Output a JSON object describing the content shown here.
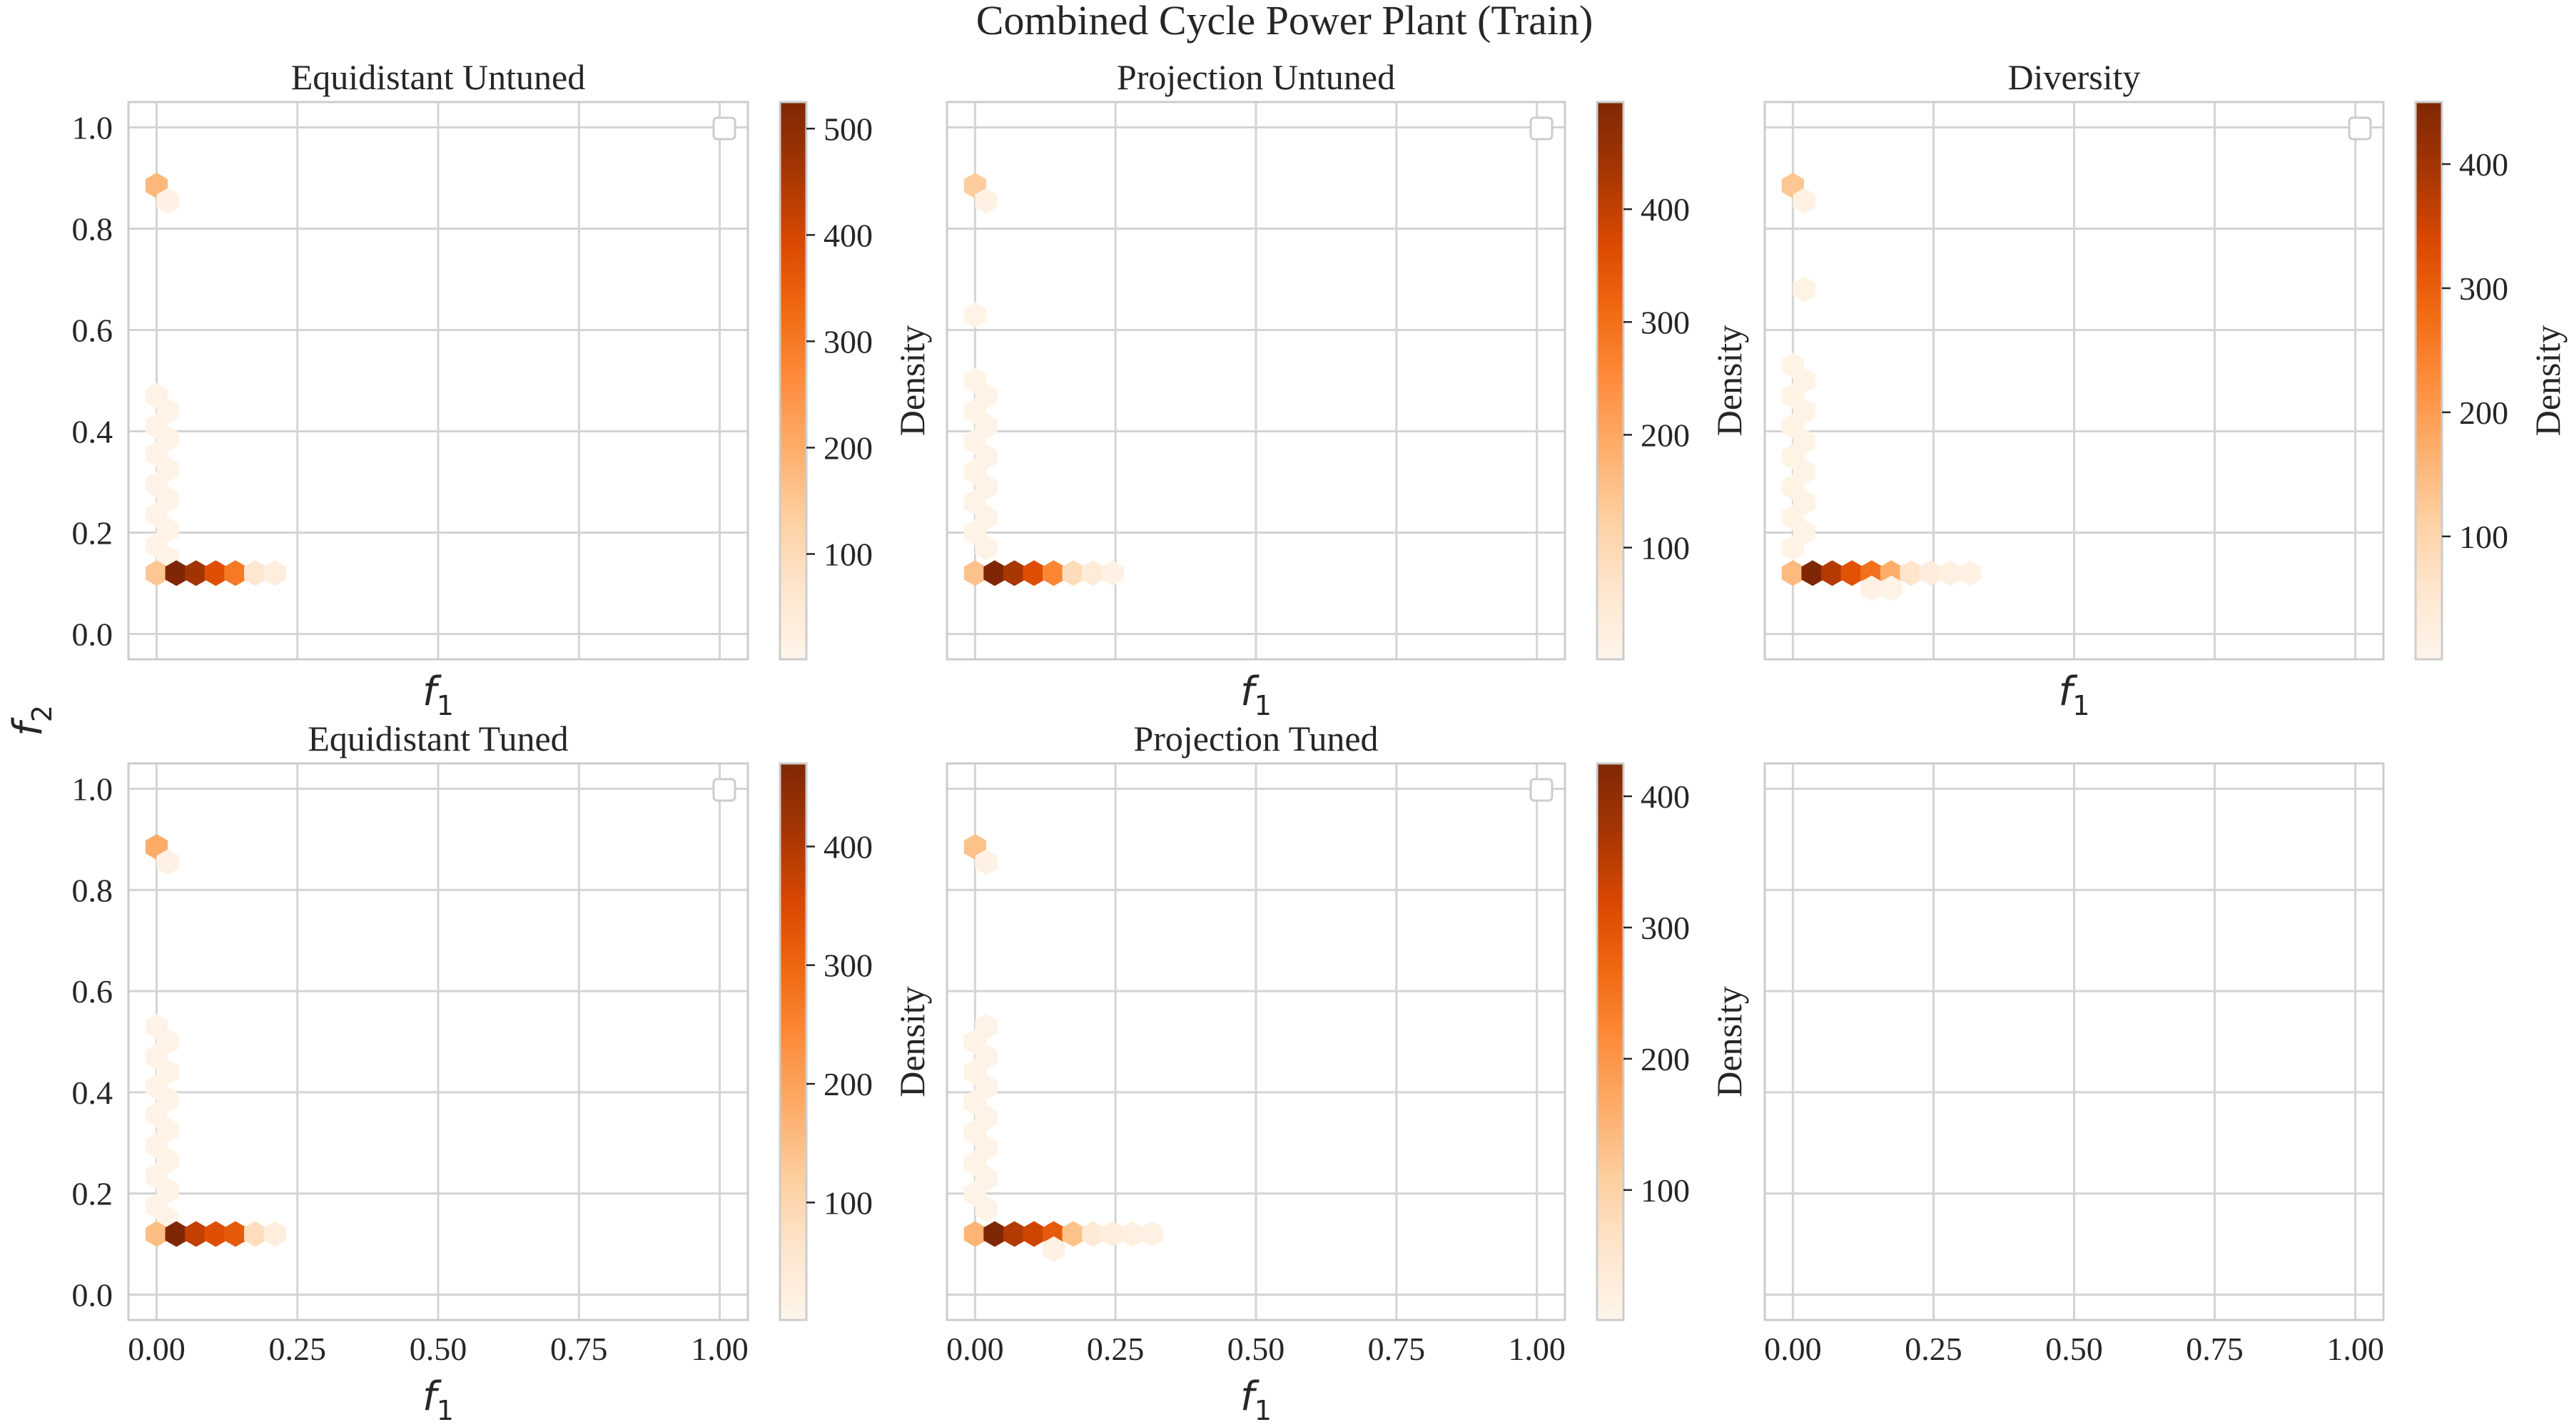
{
  "figure": {
    "title": "Combined Cycle Power Plant (Train)",
    "ylabel": "f",
    "ylabel_sub": "2"
  },
  "colors": {
    "grid": "#d4d4d4",
    "frame": "#cccccc",
    "text": "#262626",
    "background": "#ffffff",
    "colormap": [
      "#fff5eb",
      "#fee6ce",
      "#fdd0a2",
      "#fdae6b",
      "#fd8d3c",
      "#f16913",
      "#d94801",
      "#a63603",
      "#7f2704"
    ]
  },
  "chart_data": [
    {
      "type": "heatmap",
      "subtype": "hexbin",
      "title": "Equidistant Untuned",
      "xlabel": "f",
      "xlabel_sub": "1",
      "xlim": [
        -0.05,
        1.05
      ],
      "ylim": [
        -0.05,
        1.05
      ],
      "xticks": [
        0,
        0.25,
        0.5,
        0.75,
        1
      ],
      "xticklabels": [
        "0.00",
        "0.25",
        "0.50",
        "0.75",
        "1.00"
      ],
      "show_xticklabels": false,
      "yticks": [
        0,
        0.2,
        0.4,
        0.6,
        0.8,
        1.0
      ],
      "yticklabels": [
        "0.0",
        "0.2",
        "0.4",
        "0.6",
        "0.8",
        "1.0"
      ],
      "show_yticklabels": true,
      "grid": true,
      "legend": "top-right",
      "colorbar": {
        "label": "Density",
        "min": 1,
        "max": 525,
        "ticks": [
          100,
          200,
          300,
          400,
          500
        ]
      },
      "points": [
        {
          "x": 0.0,
          "y": 0.885,
          "v": 180
        },
        {
          "x": 0.02,
          "y": 0.855,
          "v": 15
        },
        {
          "x": 0.0,
          "y": 0.47,
          "v": 12
        },
        {
          "x": 0.02,
          "y": 0.44,
          "v": 10
        },
        {
          "x": 0.0,
          "y": 0.41,
          "v": 12
        },
        {
          "x": 0.02,
          "y": 0.385,
          "v": 10
        },
        {
          "x": 0.0,
          "y": 0.355,
          "v": 12
        },
        {
          "x": 0.02,
          "y": 0.325,
          "v": 10
        },
        {
          "x": 0.0,
          "y": 0.295,
          "v": 12
        },
        {
          "x": 0.02,
          "y": 0.265,
          "v": 10
        },
        {
          "x": 0.0,
          "y": 0.235,
          "v": 12
        },
        {
          "x": 0.02,
          "y": 0.205,
          "v": 10
        },
        {
          "x": 0.0,
          "y": 0.175,
          "v": 12
        },
        {
          "x": 0.02,
          "y": 0.15,
          "v": 10
        },
        {
          "x": 0.0,
          "y": 0.12,
          "v": 150
        },
        {
          "x": 0.035,
          "y": 0.12,
          "v": 525
        },
        {
          "x": 0.07,
          "y": 0.12,
          "v": 470
        },
        {
          "x": 0.105,
          "y": 0.12,
          "v": 380
        },
        {
          "x": 0.14,
          "y": 0.12,
          "v": 300
        },
        {
          "x": 0.175,
          "y": 0.12,
          "v": 60
        },
        {
          "x": 0.21,
          "y": 0.12,
          "v": 30
        }
      ]
    },
    {
      "type": "heatmap",
      "subtype": "hexbin",
      "title": "Projection Untuned",
      "xlabel": "f",
      "xlabel_sub": "1",
      "xlim": [
        -0.05,
        1.05
      ],
      "ylim": [
        -0.05,
        1.05
      ],
      "xticks": [
        0,
        0.25,
        0.5,
        0.75,
        1
      ],
      "xticklabels": [
        "0.00",
        "0.25",
        "0.50",
        "0.75",
        "1.00"
      ],
      "show_xticklabels": false,
      "yticks": [
        0,
        0.2,
        0.4,
        0.6,
        0.8,
        1.0
      ],
      "yticklabels": [
        "0.0",
        "0.2",
        "0.4",
        "0.6",
        "0.8",
        "1.0"
      ],
      "show_yticklabels": false,
      "grid": true,
      "legend": "top-right",
      "colorbar": {
        "label": "Density",
        "min": 1,
        "max": 495,
        "ticks": [
          100,
          200,
          300,
          400
        ]
      },
      "points": [
        {
          "x": 0.0,
          "y": 0.885,
          "v": 130
        },
        {
          "x": 0.02,
          "y": 0.855,
          "v": 15
        },
        {
          "x": 0.0,
          "y": 0.63,
          "v": 10
        },
        {
          "x": 0.0,
          "y": 0.5,
          "v": 10
        },
        {
          "x": 0.02,
          "y": 0.47,
          "v": 10
        },
        {
          "x": 0.0,
          "y": 0.44,
          "v": 10
        },
        {
          "x": 0.02,
          "y": 0.41,
          "v": 10
        },
        {
          "x": 0.0,
          "y": 0.38,
          "v": 10
        },
        {
          "x": 0.02,
          "y": 0.35,
          "v": 10
        },
        {
          "x": 0.0,
          "y": 0.32,
          "v": 10
        },
        {
          "x": 0.02,
          "y": 0.29,
          "v": 10
        },
        {
          "x": 0.0,
          "y": 0.26,
          "v": 10
        },
        {
          "x": 0.02,
          "y": 0.23,
          "v": 10
        },
        {
          "x": 0.0,
          "y": 0.2,
          "v": 10
        },
        {
          "x": 0.02,
          "y": 0.17,
          "v": 10
        },
        {
          "x": 0.0,
          "y": 0.12,
          "v": 150
        },
        {
          "x": 0.035,
          "y": 0.12,
          "v": 495
        },
        {
          "x": 0.07,
          "y": 0.12,
          "v": 430
        },
        {
          "x": 0.105,
          "y": 0.12,
          "v": 360
        },
        {
          "x": 0.14,
          "y": 0.12,
          "v": 260
        },
        {
          "x": 0.175,
          "y": 0.12,
          "v": 90
        },
        {
          "x": 0.21,
          "y": 0.12,
          "v": 40
        },
        {
          "x": 0.245,
          "y": 0.12,
          "v": 15
        }
      ]
    },
    {
      "type": "heatmap",
      "subtype": "hexbin",
      "title": "Diversity",
      "xlabel": "f",
      "xlabel_sub": "1",
      "xlim": [
        -0.05,
        1.05
      ],
      "ylim": [
        -0.05,
        1.05
      ],
      "xticks": [
        0,
        0.25,
        0.5,
        0.75,
        1
      ],
      "xticklabels": [
        "0.00",
        "0.25",
        "0.50",
        "0.75",
        "1.00"
      ],
      "show_xticklabels": false,
      "yticks": [
        0,
        0.2,
        0.4,
        0.6,
        0.8,
        1.0
      ],
      "yticklabels": [
        "0.0",
        "0.2",
        "0.4",
        "0.6",
        "0.8",
        "1.0"
      ],
      "show_yticklabels": false,
      "grid": true,
      "legend": "top-right",
      "colorbar": {
        "label": "Density",
        "min": 1,
        "max": 450,
        "ticks": [
          100,
          200,
          300,
          400
        ]
      },
      "points": [
        {
          "x": 0.0,
          "y": 0.885,
          "v": 130
        },
        {
          "x": 0.02,
          "y": 0.855,
          "v": 15
        },
        {
          "x": 0.02,
          "y": 0.68,
          "v": 10
        },
        {
          "x": 0.0,
          "y": 0.53,
          "v": 10
        },
        {
          "x": 0.02,
          "y": 0.5,
          "v": 10
        },
        {
          "x": 0.0,
          "y": 0.47,
          "v": 10
        },
        {
          "x": 0.02,
          "y": 0.44,
          "v": 10
        },
        {
          "x": 0.0,
          "y": 0.41,
          "v": 10
        },
        {
          "x": 0.02,
          "y": 0.38,
          "v": 10
        },
        {
          "x": 0.0,
          "y": 0.35,
          "v": 10
        },
        {
          "x": 0.02,
          "y": 0.32,
          "v": 10
        },
        {
          "x": 0.0,
          "y": 0.29,
          "v": 10
        },
        {
          "x": 0.02,
          "y": 0.26,
          "v": 10
        },
        {
          "x": 0.0,
          "y": 0.23,
          "v": 10
        },
        {
          "x": 0.02,
          "y": 0.2,
          "v": 10
        },
        {
          "x": 0.0,
          "y": 0.17,
          "v": 10
        },
        {
          "x": 0.0,
          "y": 0.12,
          "v": 150
        },
        {
          "x": 0.035,
          "y": 0.12,
          "v": 450
        },
        {
          "x": 0.07,
          "y": 0.12,
          "v": 380
        },
        {
          "x": 0.105,
          "y": 0.12,
          "v": 320
        },
        {
          "x": 0.14,
          "y": 0.12,
          "v": 270
        },
        {
          "x": 0.175,
          "y": 0.12,
          "v": 170
        },
        {
          "x": 0.21,
          "y": 0.12,
          "v": 60
        },
        {
          "x": 0.245,
          "y": 0.12,
          "v": 30
        },
        {
          "x": 0.28,
          "y": 0.12,
          "v": 20
        },
        {
          "x": 0.315,
          "y": 0.12,
          "v": 15
        },
        {
          "x": 0.14,
          "y": 0.09,
          "v": 15
        },
        {
          "x": 0.175,
          "y": 0.09,
          "v": 10
        }
      ]
    },
    {
      "type": "heatmap",
      "subtype": "hexbin",
      "title": "Equidistant Tuned",
      "xlabel": "f",
      "xlabel_sub": "1",
      "xlim": [
        -0.05,
        1.05
      ],
      "ylim": [
        -0.05,
        1.05
      ],
      "xticks": [
        0,
        0.25,
        0.5,
        0.75,
        1
      ],
      "xticklabels": [
        "0.00",
        "0.25",
        "0.50",
        "0.75",
        "1.00"
      ],
      "show_xticklabels": true,
      "yticks": [
        0,
        0.2,
        0.4,
        0.6,
        0.8,
        1.0
      ],
      "yticklabels": [
        "0.0",
        "0.2",
        "0.4",
        "0.6",
        "0.8",
        "1.0"
      ],
      "show_yticklabels": true,
      "grid": true,
      "legend": "top-right",
      "colorbar": {
        "label": "Density",
        "min": 1,
        "max": 470,
        "ticks": [
          100,
          200,
          300,
          400
        ]
      },
      "points": [
        {
          "x": 0.0,
          "y": 0.885,
          "v": 180
        },
        {
          "x": 0.02,
          "y": 0.855,
          "v": 15
        },
        {
          "x": 0.0,
          "y": 0.53,
          "v": 10
        },
        {
          "x": 0.02,
          "y": 0.5,
          "v": 10
        },
        {
          "x": 0.0,
          "y": 0.47,
          "v": 12
        },
        {
          "x": 0.02,
          "y": 0.44,
          "v": 10
        },
        {
          "x": 0.0,
          "y": 0.41,
          "v": 12
        },
        {
          "x": 0.02,
          "y": 0.385,
          "v": 10
        },
        {
          "x": 0.0,
          "y": 0.355,
          "v": 12
        },
        {
          "x": 0.02,
          "y": 0.325,
          "v": 10
        },
        {
          "x": 0.0,
          "y": 0.295,
          "v": 12
        },
        {
          "x": 0.02,
          "y": 0.265,
          "v": 10
        },
        {
          "x": 0.0,
          "y": 0.235,
          "v": 12
        },
        {
          "x": 0.02,
          "y": 0.205,
          "v": 10
        },
        {
          "x": 0.0,
          "y": 0.175,
          "v": 12
        },
        {
          "x": 0.02,
          "y": 0.15,
          "v": 10
        },
        {
          "x": 0.0,
          "y": 0.12,
          "v": 150
        },
        {
          "x": 0.035,
          "y": 0.12,
          "v": 470
        },
        {
          "x": 0.07,
          "y": 0.12,
          "v": 380
        },
        {
          "x": 0.105,
          "y": 0.12,
          "v": 340
        },
        {
          "x": 0.14,
          "y": 0.12,
          "v": 320
        },
        {
          "x": 0.175,
          "y": 0.12,
          "v": 80
        },
        {
          "x": 0.21,
          "y": 0.12,
          "v": 30
        }
      ]
    },
    {
      "type": "heatmap",
      "subtype": "hexbin",
      "title": "Projection Tuned",
      "xlabel": "f",
      "xlabel_sub": "1",
      "xlim": [
        -0.05,
        1.05
      ],
      "ylim": [
        -0.05,
        1.05
      ],
      "xticks": [
        0,
        0.25,
        0.5,
        0.75,
        1
      ],
      "xticklabels": [
        "0.00",
        "0.25",
        "0.50",
        "0.75",
        "1.00"
      ],
      "show_xticklabels": true,
      "yticks": [
        0,
        0.2,
        0.4,
        0.6,
        0.8,
        1.0
      ],
      "yticklabels": [
        "0.0",
        "0.2",
        "0.4",
        "0.6",
        "0.8",
        "1.0"
      ],
      "show_yticklabels": false,
      "grid": true,
      "legend": "top-right",
      "colorbar": {
        "label": "Density",
        "min": 1,
        "max": 425,
        "ticks": [
          100,
          200,
          300,
          400
        ]
      },
      "points": [
        {
          "x": 0.0,
          "y": 0.885,
          "v": 130
        },
        {
          "x": 0.02,
          "y": 0.855,
          "v": 15
        },
        {
          "x": 0.02,
          "y": 0.53,
          "v": 10
        },
        {
          "x": 0.0,
          "y": 0.5,
          "v": 10
        },
        {
          "x": 0.02,
          "y": 0.47,
          "v": 10
        },
        {
          "x": 0.0,
          "y": 0.44,
          "v": 10
        },
        {
          "x": 0.02,
          "y": 0.41,
          "v": 10
        },
        {
          "x": 0.0,
          "y": 0.38,
          "v": 10
        },
        {
          "x": 0.02,
          "y": 0.35,
          "v": 10
        },
        {
          "x": 0.0,
          "y": 0.32,
          "v": 10
        },
        {
          "x": 0.02,
          "y": 0.29,
          "v": 10
        },
        {
          "x": 0.0,
          "y": 0.26,
          "v": 10
        },
        {
          "x": 0.02,
          "y": 0.23,
          "v": 10
        },
        {
          "x": 0.0,
          "y": 0.2,
          "v": 10
        },
        {
          "x": 0.02,
          "y": 0.17,
          "v": 10
        },
        {
          "x": 0.0,
          "y": 0.12,
          "v": 150
        },
        {
          "x": 0.035,
          "y": 0.12,
          "v": 425
        },
        {
          "x": 0.07,
          "y": 0.12,
          "v": 360
        },
        {
          "x": 0.105,
          "y": 0.12,
          "v": 330
        },
        {
          "x": 0.14,
          "y": 0.12,
          "v": 290
        },
        {
          "x": 0.175,
          "y": 0.12,
          "v": 130
        },
        {
          "x": 0.21,
          "y": 0.12,
          "v": 40
        },
        {
          "x": 0.245,
          "y": 0.12,
          "v": 25
        },
        {
          "x": 0.28,
          "y": 0.12,
          "v": 20
        },
        {
          "x": 0.315,
          "y": 0.12,
          "v": 15
        },
        {
          "x": 0.14,
          "y": 0.09,
          "v": 15
        }
      ]
    },
    {
      "type": "heatmap",
      "subtype": "hexbin",
      "title": "",
      "xlabel": "",
      "xlabel_sub": "",
      "xlim": [
        -0.05,
        1.05
      ],
      "ylim": [
        -0.05,
        1.05
      ],
      "xticks": [
        0,
        0.25,
        0.5,
        0.75,
        1
      ],
      "xticklabels": [
        "0.00",
        "0.25",
        "0.50",
        "0.75",
        "1.00"
      ],
      "show_xticklabels": true,
      "yticks": [
        0,
        0.2,
        0.4,
        0.6,
        0.8,
        1.0
      ],
      "yticklabels": [
        "0.0",
        "0.2",
        "0.4",
        "0.6",
        "0.8",
        "1.0"
      ],
      "show_yticklabels": false,
      "grid": true,
      "legend": "none",
      "colorbar": null,
      "points": []
    }
  ]
}
